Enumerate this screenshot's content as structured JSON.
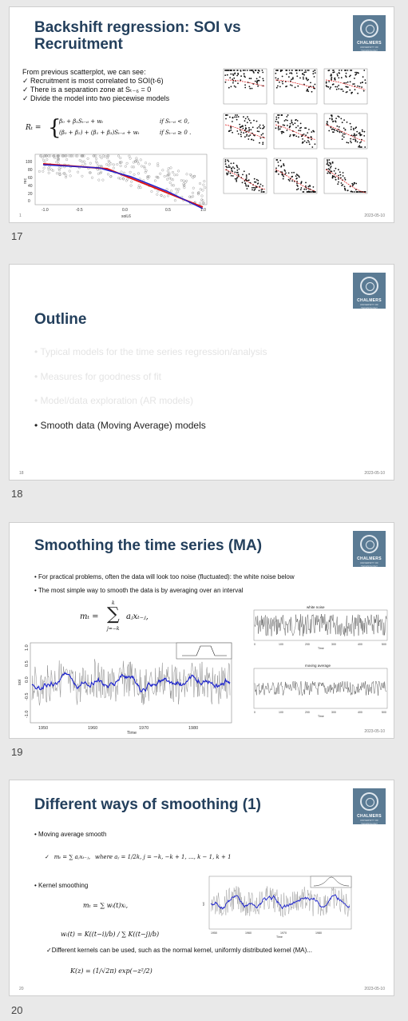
{
  "logo": {
    "name": "CHALMERS",
    "subtitle": "UNIVERSITY OF TECHNOLOGY"
  },
  "footer_date": "2023-05-10",
  "slides": [
    {
      "number": "17",
      "page_label": "1",
      "title": "Backshift regression: SOI vs Recruitment",
      "intro": "From previous scatterplot, we can see:",
      "bullets": [
        "Recruitment is most correlated to SOI(t-6)",
        "There is a separation zone at Sₜ₋₆ = 0",
        "Divide the model into two piecewise models"
      ],
      "eq_lhs": "Rₜ =",
      "eq_case1": "β₀ + β₁Sₜ₋₆ + wₜ",
      "eq_case1_cond": "if  Sₜ₋₆ < 0,",
      "eq_case2": "(β₀ + β₂) + (β₁ + β₃)Sₜ₋₆ + wₜ",
      "eq_case2_cond": "if  Sₜ₋₆ ≥ 0 .",
      "scatter": {
        "xlabel": "soiL6",
        "ylabel": "rec",
        "xticks": [
          "-1.0",
          "-0.5",
          "0.0",
          "0.5",
          "1.0"
        ],
        "yticks": [
          "0",
          "20",
          "40",
          "60",
          "80",
          "100"
        ]
      }
    },
    {
      "number": "18",
      "page_label": "18",
      "title": "Outline",
      "items": [
        "Typical models for the time series regression/analysis",
        "Measures for goodness of fit",
        "Model/data exploration (AR models)",
        "Smooth data (Moving Average) models"
      ]
    },
    {
      "number": "19",
      "page_label": "",
      "title": "Smoothing the time series (MA)",
      "bullets": [
        "For practical problems, often the data will look too noise (fluctuated): the white noise below",
        "The most simple way to smooth the data is by averaging over an interval"
      ],
      "eq_lhs": "mₜ =",
      "eq_sum_top": "k",
      "eq_sum_bot": "j=−k",
      "eq_rhs": "aⱼxₜ₋ⱼ,",
      "soi_plot": {
        "xlabel": "Time",
        "ylabel": "soi",
        "xticks": [
          "1950",
          "1960",
          "1970",
          "1980"
        ],
        "yticks": [
          "1.0",
          "0.5",
          "0.0",
          "-0.5",
          "-1.0"
        ]
      },
      "wn_plot": {
        "title": "white noise",
        "xlabel": "Time",
        "xticks": [
          "0",
          "100",
          "200",
          "300",
          "400",
          "500"
        ]
      },
      "ma_plot": {
        "title": "moving average",
        "xlabel": "Time",
        "xticks": [
          "0",
          "100",
          "200",
          "300",
          "400",
          "500"
        ]
      }
    },
    {
      "number": "20",
      "page_label": "20",
      "title": "Different ways of smoothing (1)",
      "bullet1": "Moving average smooth",
      "ma_eq": "mₜ = ∑ aⱼxₜ₋ⱼ,",
      "ma_where": "where aⱼ = 1/2k, j = −k, −k + 1, ..., k − 1, k + 1",
      "bullet2": "Kernel smoothing",
      "kernel_eq": "mₜ = ∑ wᵢ(t)xᵢ,",
      "weight_eq": "wᵢ(t) = K((t−i)/b) / ∑ K((t−j)/b)",
      "kernel_note": "Different kernels can be used, such as the normal kernel, uniformly distributed kernel (MA)...",
      "normal_kernel": "K(z) = (1/√2π) exp(−z²/2)",
      "plot": {
        "xlabel": "Time",
        "ylabel": "soi",
        "xticks": [
          "1950",
          "1960",
          "1970",
          "1980"
        ]
      }
    }
  ]
}
